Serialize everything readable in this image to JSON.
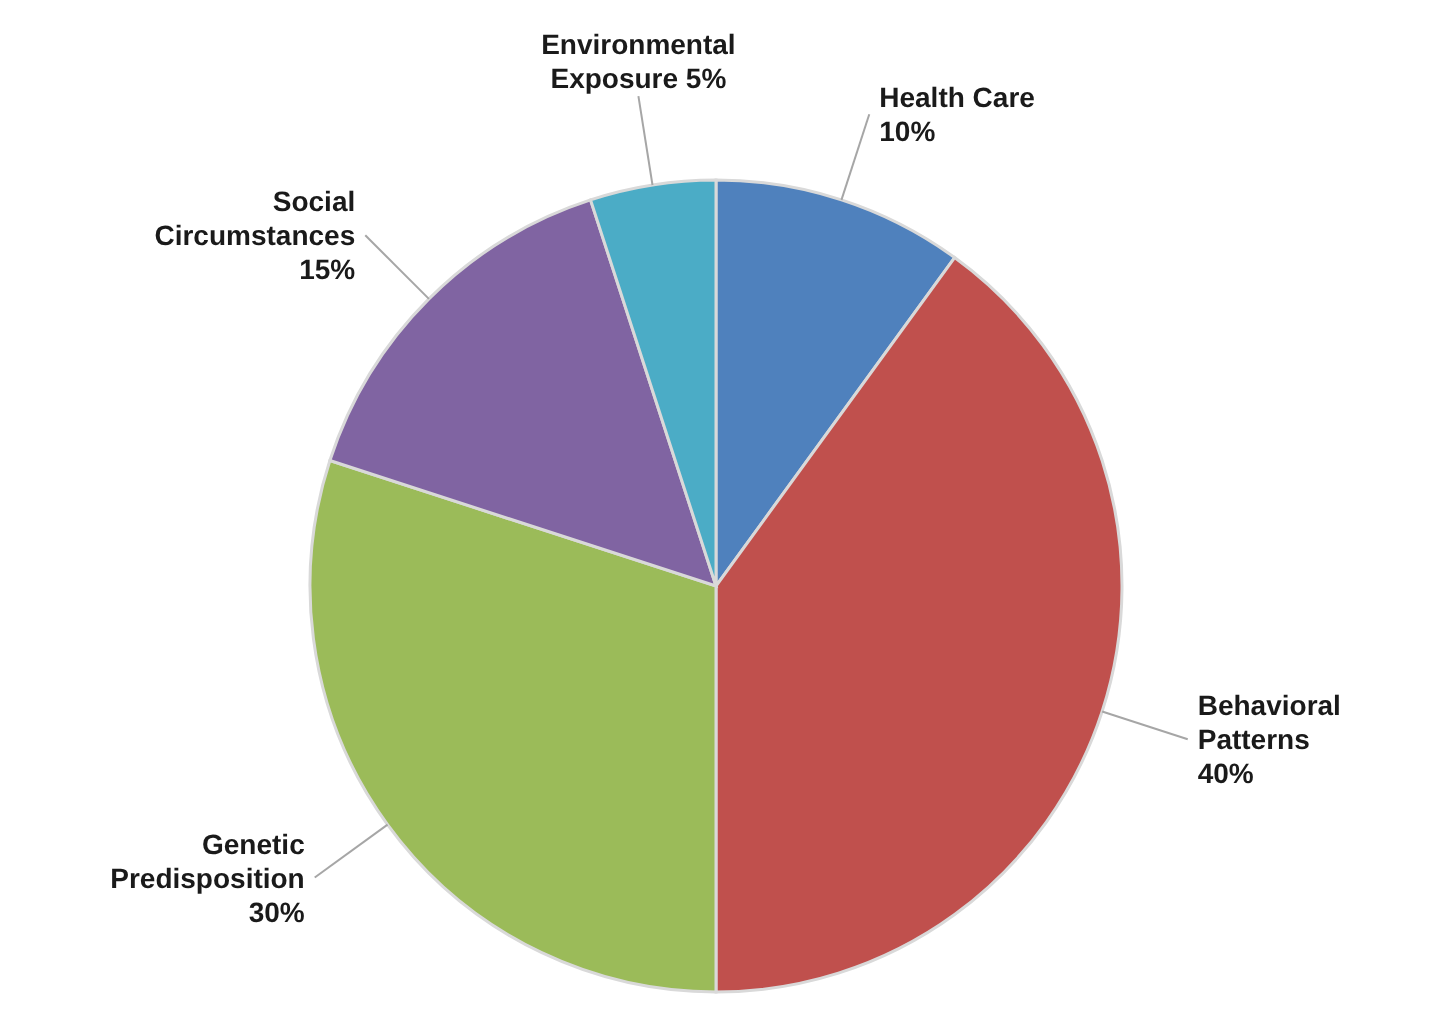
{
  "chart_data": {
    "type": "pie",
    "categories": [
      "Health Care",
      "Behavioral Patterns",
      "Genetic Predisposition",
      "Social Circumstances",
      "Environmental Exposure"
    ],
    "values": [
      10,
      40,
      30,
      15,
      5
    ],
    "colors": [
      "#4f81bd",
      "#c0504d",
      "#9bbb59",
      "#8064a2",
      "#4bacc6"
    ],
    "value_labels": [
      "10%",
      "40%",
      "30%",
      "15%",
      "5%"
    ]
  }
}
